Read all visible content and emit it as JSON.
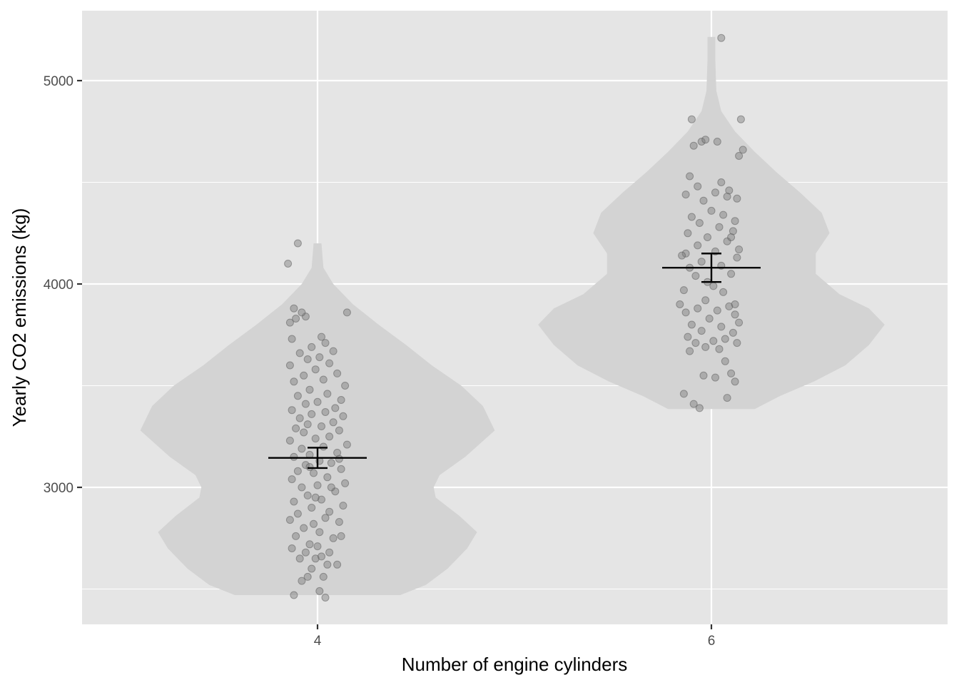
{
  "chart_data": {
    "type": "violin",
    "title": "",
    "xlabel": "Number of engine cylinders",
    "ylabel": "Yearly CO2 emissions (kg)",
    "ylim": [
      2415,
      5300
    ],
    "y_ticks": [
      3000,
      4000,
      5000
    ],
    "x_ticks": [
      "4",
      "6"
    ],
    "grid": true,
    "legend": "none",
    "colors": {
      "panel": "#e5e5e5",
      "grid": "#ffffff",
      "violin": "#d3d3d3",
      "point": "#7a7a7a",
      "summary": "#000000"
    },
    "groups": [
      {
        "category": "4",
        "mean": 3145,
        "ci": [
          3095,
          3195
        ],
        "violin_profile": [
          [
            2470,
            0.42
          ],
          [
            2520,
            0.55
          ],
          [
            2600,
            0.66
          ],
          [
            2700,
            0.76
          ],
          [
            2780,
            0.81
          ],
          [
            2860,
            0.72
          ],
          [
            2950,
            0.6
          ],
          [
            3000,
            0.59
          ],
          [
            3060,
            0.62
          ],
          [
            3150,
            0.75
          ],
          [
            3280,
            0.9
          ],
          [
            3400,
            0.84
          ],
          [
            3500,
            0.73
          ],
          [
            3600,
            0.58
          ],
          [
            3700,
            0.45
          ],
          [
            3800,
            0.31
          ],
          [
            3900,
            0.18
          ],
          [
            4000,
            0.08
          ],
          [
            4080,
            0.03
          ],
          [
            4200,
            0.02
          ]
        ],
        "points": [
          [
            0.88,
            2470
          ],
          [
            1.04,
            2458
          ],
          [
            1.01,
            2490
          ],
          [
            0.92,
            2540
          ],
          [
            0.95,
            2560
          ],
          [
            1.03,
            2560
          ],
          [
            0.97,
            2600
          ],
          [
            1.05,
            2620
          ],
          [
            1.1,
            2620
          ],
          [
            0.91,
            2650
          ],
          [
            0.99,
            2650
          ],
          [
            1.02,
            2660
          ],
          [
            0.94,
            2680
          ],
          [
            1.06,
            2680
          ],
          [
            0.87,
            2700
          ],
          [
            1.0,
            2710
          ],
          [
            0.96,
            2720
          ],
          [
            1.08,
            2750
          ],
          [
            0.89,
            2760
          ],
          [
            1.12,
            2760
          ],
          [
            1.01,
            2780
          ],
          [
            0.93,
            2800
          ],
          [
            0.98,
            2820
          ],
          [
            1.11,
            2830
          ],
          [
            0.86,
            2840
          ],
          [
            1.04,
            2850
          ],
          [
            0.9,
            2870
          ],
          [
            1.06,
            2880
          ],
          [
            0.97,
            2900
          ],
          [
            1.13,
            2910
          ],
          [
            0.88,
            2930
          ],
          [
            1.02,
            2940
          ],
          [
            0.95,
            2960
          ],
          [
            1.09,
            2980
          ],
          [
            0.92,
            3000
          ],
          [
            1.0,
            3010
          ],
          [
            1.14,
            3020
          ],
          [
            0.87,
            3040
          ],
          [
            1.05,
            3050
          ],
          [
            0.98,
            3070
          ],
          [
            0.9,
            3080
          ],
          [
            1.12,
            3090
          ],
          [
            0.94,
            3110
          ],
          [
            1.07,
            3120
          ],
          [
            1.01,
            3130
          ],
          [
            0.88,
            3150
          ],
          [
            0.96,
            3160
          ],
          [
            1.1,
            3170
          ],
          [
            0.92,
            3190
          ],
          [
            1.03,
            3200
          ],
          [
            1.15,
            3210
          ],
          [
            0.86,
            3230
          ],
          [
            0.99,
            3240
          ],
          [
            1.06,
            3250
          ],
          [
            0.93,
            3270
          ],
          [
            1.11,
            3280
          ],
          [
            0.89,
            3290
          ],
          [
            1.02,
            3300
          ],
          [
            0.95,
            3310
          ],
          [
            1.08,
            3320
          ],
          [
            0.91,
            3340
          ],
          [
            1.13,
            3350
          ],
          [
            0.97,
            3360
          ],
          [
            1.04,
            3370
          ],
          [
            0.87,
            3380
          ],
          [
            1.09,
            3390
          ],
          [
            0.94,
            3410
          ],
          [
            1.0,
            3420
          ],
          [
            1.12,
            3430
          ],
          [
            0.9,
            3450
          ],
          [
            1.05,
            3460
          ],
          [
            0.96,
            3480
          ],
          [
            1.14,
            3500
          ],
          [
            0.88,
            3520
          ],
          [
            1.03,
            3530
          ],
          [
            0.93,
            3550
          ],
          [
            1.1,
            3560
          ],
          [
            0.99,
            3580
          ],
          [
            0.86,
            3600
          ],
          [
            1.06,
            3610
          ],
          [
            0.95,
            3630
          ],
          [
            1.01,
            3640
          ],
          [
            0.91,
            3660
          ],
          [
            1.08,
            3670
          ],
          [
            0.97,
            3690
          ],
          [
            1.04,
            3710
          ],
          [
            0.87,
            3730
          ],
          [
            1.02,
            3740
          ],
          [
            0.86,
            3810
          ],
          [
            0.89,
            3830
          ],
          [
            0.94,
            3840
          ],
          [
            0.92,
            3860
          ],
          [
            0.88,
            3880
          ],
          [
            1.15,
            3860
          ],
          [
            0.85,
            4100
          ],
          [
            0.9,
            4200
          ],
          [
            0.99,
            2950
          ],
          [
            1.07,
            3000
          ],
          [
            0.96,
            3100
          ],
          [
            1.11,
            3140
          ]
        ]
      },
      {
        "category": "6",
        "mean": 4080,
        "ci": [
          4010,
          4150
        ],
        "violin_profile": [
          [
            3385,
            0.22
          ],
          [
            3450,
            0.35
          ],
          [
            3520,
            0.52
          ],
          [
            3600,
            0.68
          ],
          [
            3700,
            0.8
          ],
          [
            3800,
            0.88
          ],
          [
            3880,
            0.8
          ],
          [
            3950,
            0.65
          ],
          [
            4050,
            0.53
          ],
          [
            4150,
            0.53
          ],
          [
            4250,
            0.6
          ],
          [
            4350,
            0.56
          ],
          [
            4450,
            0.45
          ],
          [
            4550,
            0.33
          ],
          [
            4650,
            0.22
          ],
          [
            4750,
            0.12
          ],
          [
            4850,
            0.05
          ],
          [
            4950,
            0.025
          ],
          [
            5100,
            0.02
          ],
          [
            5215,
            0.02
          ]
        ],
        "points": [
          [
            0.86,
            3460
          ],
          [
            0.91,
            3410
          ],
          [
            0.94,
            3390
          ],
          [
            1.08,
            3440
          ],
          [
            1.02,
            3540
          ],
          [
            1.1,
            3560
          ],
          [
            0.96,
            3550
          ],
          [
            1.12,
            3520
          ],
          [
            0.89,
            3670
          ],
          [
            1.04,
            3680
          ],
          [
            1.13,
            3710
          ],
          [
            0.97,
            3690
          ],
          [
            0.92,
            3710
          ],
          [
            1.01,
            3720
          ],
          [
            1.07,
            3730
          ],
          [
            0.88,
            3740
          ],
          [
            1.11,
            3760
          ],
          [
            0.95,
            3770
          ],
          [
            1.05,
            3790
          ],
          [
            0.9,
            3800
          ],
          [
            1.14,
            3810
          ],
          [
            0.99,
            3830
          ],
          [
            0.87,
            3860
          ],
          [
            1.03,
            3870
          ],
          [
            0.93,
            3880
          ],
          [
            1.09,
            3890
          ],
          [
            0.84,
            3900
          ],
          [
            1.12,
            3900
          ],
          [
            0.97,
            3920
          ],
          [
            1.06,
            3960
          ],
          [
            0.86,
            3970
          ],
          [
            1.01,
            3990
          ],
          [
            0.92,
            4040
          ],
          [
            1.1,
            4050
          ],
          [
            0.89,
            4080
          ],
          [
            1.05,
            4090
          ],
          [
            0.95,
            4110
          ],
          [
            1.13,
            4130
          ],
          [
            0.87,
            4150
          ],
          [
            1.02,
            4160
          ],
          [
            1.14,
            4170
          ],
          [
            0.93,
            4190
          ],
          [
            1.08,
            4210
          ],
          [
            0.98,
            4230
          ],
          [
            0.88,
            4250
          ],
          [
            1.11,
            4260
          ],
          [
            1.04,
            4280
          ],
          [
            0.94,
            4300
          ],
          [
            1.12,
            4310
          ],
          [
            0.9,
            4330
          ],
          [
            1.06,
            4340
          ],
          [
            1.0,
            4360
          ],
          [
            0.96,
            4410
          ],
          [
            1.13,
            4420
          ],
          [
            0.87,
            4440
          ],
          [
            1.02,
            4450
          ],
          [
            1.09,
            4460
          ],
          [
            0.93,
            4480
          ],
          [
            1.05,
            4500
          ],
          [
            0.89,
            4530
          ],
          [
            1.14,
            4630
          ],
          [
            1.16,
            4660
          ],
          [
            0.91,
            4680
          ],
          [
            0.95,
            4700
          ],
          [
            0.97,
            4710
          ],
          [
            1.03,
            4700
          ],
          [
            0.9,
            4810
          ],
          [
            1.15,
            4810
          ],
          [
            1.05,
            5210
          ],
          [
            1.07,
            3620
          ],
          [
            0.85,
            4140
          ],
          [
            1.1,
            4230
          ],
          [
            0.98,
            4010
          ],
          [
            1.12,
            3850
          ],
          [
            1.08,
            4430
          ]
        ]
      }
    ]
  }
}
